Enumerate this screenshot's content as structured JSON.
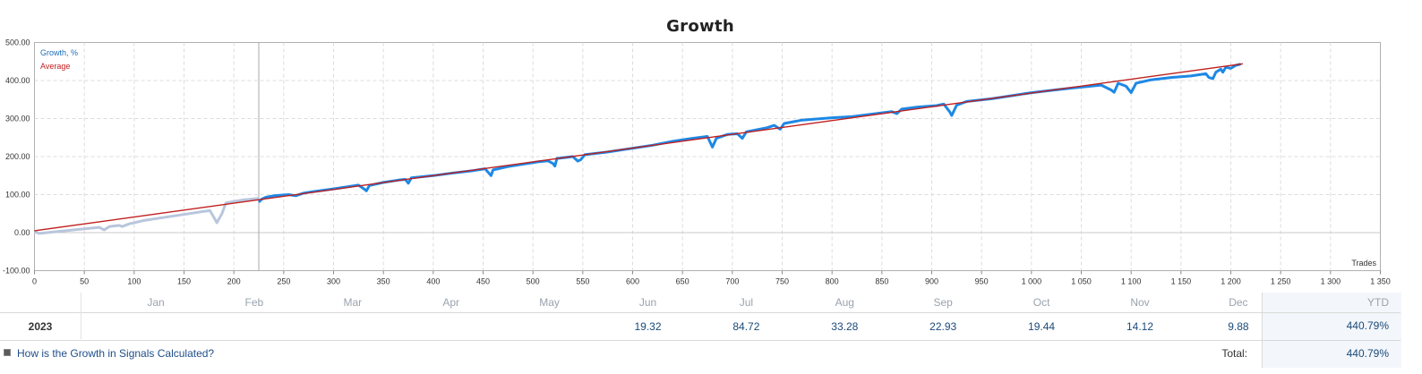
{
  "chart_data": {
    "type": "line",
    "title": "Growth",
    "xlabel": "Trades",
    "ylabel": "",
    "xlim": [
      0,
      1350
    ],
    "ylim": [
      -100,
      500
    ],
    "xticks": [
      0,
      50,
      100,
      150,
      200,
      250,
      300,
      350,
      400,
      450,
      500,
      550,
      600,
      650,
      700,
      750,
      800,
      850,
      900,
      950,
      1000,
      1050,
      1100,
      1150,
      1200,
      1250,
      1300,
      1350
    ],
    "xtick_labels": [
      "0",
      "50",
      "100",
      "150",
      "200",
      "250",
      "300",
      "350",
      "400",
      "450",
      "500",
      "550",
      "600",
      "650",
      "700",
      "750",
      "800",
      "850",
      "900",
      "950",
      "1 000",
      "1 050",
      "1 100",
      "1 150",
      "1 200",
      "1 250",
      "1 300",
      "1 350"
    ],
    "yticks": [
      -100,
      0,
      100,
      200,
      300,
      400,
      500
    ],
    "ytick_labels": [
      "-100.00",
      "0.00",
      "100.00",
      "200.00",
      "300.00",
      "400.00",
      "500.00"
    ],
    "grid": true,
    "legend": "top-left",
    "marker_x": 225,
    "series": [
      {
        "name": "Growth, %",
        "color": "#1e88e5",
        "history_color": "#b8c6dd",
        "history": [
          [
            0,
            2
          ],
          [
            5,
            -2
          ],
          [
            20,
            2
          ],
          [
            50,
            10
          ],
          [
            65,
            14
          ],
          [
            70,
            7
          ],
          [
            75,
            16
          ],
          [
            85,
            19
          ],
          [
            88,
            16
          ],
          [
            95,
            23
          ],
          [
            110,
            32
          ],
          [
            125,
            38
          ],
          [
            140,
            44
          ],
          [
            155,
            50
          ],
          [
            170,
            56
          ],
          [
            176,
            58
          ],
          [
            180,
            40
          ],
          [
            183,
            26
          ],
          [
            188,
            50
          ],
          [
            192,
            78
          ],
          [
            200,
            82
          ],
          [
            210,
            86
          ],
          [
            225,
            90
          ]
        ],
        "points": [
          [
            225,
            80
          ],
          [
            228,
            88
          ],
          [
            232,
            93
          ],
          [
            240,
            97
          ],
          [
            255,
            100
          ],
          [
            262,
            97
          ],
          [
            270,
            104
          ],
          [
            280,
            108
          ],
          [
            300,
            115
          ],
          [
            315,
            121
          ],
          [
            325,
            125
          ],
          [
            330,
            116
          ],
          [
            333,
            110
          ],
          [
            336,
            124
          ],
          [
            350,
            132
          ],
          [
            365,
            138
          ],
          [
            372,
            140
          ],
          [
            375,
            130
          ],
          [
            378,
            144
          ],
          [
            400,
            150
          ],
          [
            420,
            157
          ],
          [
            440,
            163
          ],
          [
            452,
            168
          ],
          [
            458,
            150
          ],
          [
            460,
            165
          ],
          [
            475,
            174
          ],
          [
            490,
            180
          ],
          [
            505,
            186
          ],
          [
            515,
            189
          ],
          [
            520,
            182
          ],
          [
            522,
            175
          ],
          [
            524,
            195
          ],
          [
            540,
            200
          ],
          [
            545,
            188
          ],
          [
            548,
            192
          ],
          [
            552,
            205
          ],
          [
            575,
            212
          ],
          [
            600,
            222
          ],
          [
            620,
            230
          ],
          [
            640,
            240
          ],
          [
            660,
            248
          ],
          [
            675,
            253
          ],
          [
            680,
            225
          ],
          [
            684,
            248
          ],
          [
            695,
            258
          ],
          [
            705,
            260
          ],
          [
            710,
            248
          ],
          [
            714,
            265
          ],
          [
            735,
            276
          ],
          [
            742,
            282
          ],
          [
            748,
            272
          ],
          [
            752,
            287
          ],
          [
            770,
            296
          ],
          [
            800,
            302
          ],
          [
            820,
            305
          ],
          [
            850,
            315
          ],
          [
            860,
            318
          ],
          [
            865,
            313
          ],
          [
            870,
            325
          ],
          [
            885,
            330
          ],
          [
            905,
            334
          ],
          [
            912,
            338
          ],
          [
            918,
            318
          ],
          [
            920,
            308
          ],
          [
            925,
            335
          ],
          [
            935,
            345
          ],
          [
            960,
            352
          ],
          [
            980,
            360
          ],
          [
            1000,
            368
          ],
          [
            1020,
            374
          ],
          [
            1040,
            380
          ],
          [
            1070,
            388
          ],
          [
            1080,
            375
          ],
          [
            1083,
            369
          ],
          [
            1087,
            393
          ],
          [
            1095,
            385
          ],
          [
            1100,
            368
          ],
          [
            1105,
            393
          ],
          [
            1120,
            402
          ],
          [
            1140,
            408
          ],
          [
            1160,
            412
          ],
          [
            1175,
            418
          ],
          [
            1178,
            408
          ],
          [
            1182,
            405
          ],
          [
            1185,
            422
          ],
          [
            1190,
            430
          ],
          [
            1192,
            422
          ],
          [
            1195,
            435
          ],
          [
            1200,
            432
          ],
          [
            1205,
            440
          ],
          [
            1210,
            443
          ]
        ]
      },
      {
        "name": "Average",
        "color": "#c01e1e",
        "points": [
          [
            0,
            5
          ],
          [
            1212,
            444
          ]
        ]
      }
    ]
  },
  "table": {
    "months": [
      "Jan",
      "Feb",
      "Mar",
      "Apr",
      "May",
      "Jun",
      "Jul",
      "Aug",
      "Sep",
      "Oct",
      "Nov",
      "Dec"
    ],
    "ytd_label": "YTD",
    "year": "2023",
    "values": [
      "",
      "",
      "",
      "",
      "",
      "19.32",
      "84.72",
      "33.28",
      "22.93",
      "19.44",
      "14.12",
      "9.88"
    ],
    "ytd_value": "440.79%",
    "help_link": "How is the Growth in Signals Calculated?",
    "total_label": "Total:",
    "total_value": "440.79%"
  }
}
